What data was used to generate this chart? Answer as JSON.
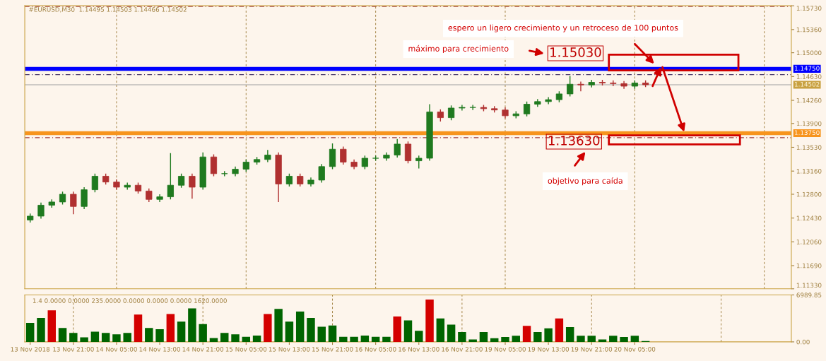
{
  "chart_data": [
    {
      "type": "candlestick",
      "categories": [
        null,
        null,
        null,
        null,
        null,
        null,
        null,
        null,
        null,
        null,
        null,
        null,
        null,
        null,
        null,
        null,
        null,
        null,
        null,
        null,
        null,
        null,
        null,
        null,
        null,
        null,
        null,
        null,
        null,
        null,
        null,
        null,
        null,
        null,
        null,
        null,
        null,
        null,
        null,
        null,
        null,
        null,
        null,
        null,
        null,
        null,
        null,
        null,
        null,
        null,
        null,
        null,
        null,
        null,
        null,
        null,
        null,
        null,
        null,
        null,
        null,
        null,
        null,
        null,
        null,
        null,
        null,
        null,
        null,
        null,
        null
      ],
      "ohlc": [
        [
          1.124,
          1.125,
          1.1236,
          1.1246
        ],
        [
          1.1246,
          1.1267,
          1.1242,
          1.1263
        ],
        [
          1.1263,
          1.1272,
          1.1259,
          1.1268
        ],
        [
          1.1268,
          1.1284,
          1.1264,
          1.128
        ],
        [
          1.128,
          1.1284,
          1.1249,
          1.1261
        ],
        [
          1.1261,
          1.1291,
          1.1257,
          1.1287
        ],
        [
          1.1287,
          1.1312,
          1.1283,
          1.1308
        ],
        [
          1.1308,
          1.1312,
          1.1295,
          1.1299
        ],
        [
          1.1299,
          1.1303,
          1.1287,
          1.1291
        ],
        [
          1.1291,
          1.1298,
          1.1287,
          1.1294
        ],
        [
          1.1294,
          1.1298,
          1.1281,
          1.1285
        ],
        [
          1.1285,
          1.1289,
          1.1268,
          1.1272
        ],
        [
          1.1272,
          1.128,
          1.1268,
          1.1276
        ],
        [
          1.1276,
          1.1344,
          1.1272,
          1.1294
        ],
        [
          1.1294,
          1.1312,
          1.129,
          1.1308
        ],
        [
          1.1308,
          1.1312,
          1.1273,
          1.1291
        ],
        [
          1.1291,
          1.1345,
          1.1287,
          1.1338
        ],
        [
          1.1338,
          1.1342,
          1.1308,
          1.1312
        ],
        [
          1.1312,
          1.1316,
          1.1308,
          1.1312
        ],
        [
          1.1312,
          1.1323,
          1.1308,
          1.1319
        ],
        [
          1.1319,
          1.1334,
          1.1315,
          1.133
        ],
        [
          1.133,
          1.1338,
          1.1326,
          1.1334
        ],
        [
          1.1334,
          1.1349,
          1.133,
          1.1341
        ],
        [
          1.1341,
          1.1345,
          1.1268,
          1.1296
        ],
        [
          1.1296,
          1.1312,
          1.1292,
          1.1308
        ],
        [
          1.1308,
          1.1312,
          1.1292,
          1.1296
        ],
        [
          1.1296,
          1.1306,
          1.1292,
          1.1302
        ],
        [
          1.1302,
          1.1327,
          1.1298,
          1.1323
        ],
        [
          1.1323,
          1.1359,
          1.1319,
          1.135
        ],
        [
          1.135,
          1.1354,
          1.1326,
          1.133
        ],
        [
          1.133,
          1.1334,
          1.1319,
          1.1323
        ],
        [
          1.1323,
          1.134,
          1.1319,
          1.1336
        ],
        [
          1.1336,
          1.134,
          1.1332,
          1.1336
        ],
        [
          1.1336,
          1.1345,
          1.1332,
          1.1341
        ],
        [
          1.1341,
          1.1366,
          1.1337,
          1.1358
        ],
        [
          1.1358,
          1.1362,
          1.1328,
          1.1332
        ],
        [
          1.1332,
          1.134,
          1.132,
          1.1336
        ],
        [
          1.1336,
          1.142,
          1.1332,
          1.1408
        ],
        [
          1.1408,
          1.1412,
          1.1393,
          1.1399
        ],
        [
          1.1399,
          1.1418,
          1.1395,
          1.1414
        ],
        [
          1.1414,
          1.1419,
          1.141,
          1.1415
        ],
        [
          1.1415,
          1.1419,
          1.1411,
          1.1415
        ],
        [
          1.1415,
          1.1419,
          1.1409,
          1.1413
        ],
        [
          1.1413,
          1.1417,
          1.1407,
          1.1411
        ],
        [
          1.1411,
          1.1415,
          1.1398,
          1.1402
        ],
        [
          1.1402,
          1.1409,
          1.1398,
          1.1405
        ],
        [
          1.1405,
          1.1424,
          1.1401,
          1.142
        ],
        [
          1.142,
          1.1428,
          1.1416,
          1.1424
        ],
        [
          1.1424,
          1.1431,
          1.142,
          1.1427
        ],
        [
          1.1427,
          1.144,
          1.1423,
          1.1436
        ],
        [
          1.1436,
          1.1464,
          1.1432,
          1.1451
        ],
        [
          1.1451,
          1.1455,
          1.144,
          1.145
        ],
        [
          1.145,
          1.1458,
          1.1446,
          1.1454
        ],
        [
          1.1454,
          1.1458,
          1.1449,
          1.1453
        ],
        [
          1.1453,
          1.1457,
          1.1448,
          1.1452
        ],
        [
          1.1452,
          1.1456,
          1.1444,
          1.1448
        ],
        [
          1.1448,
          1.1457,
          1.1444,
          1.1453
        ],
        [
          1.1453,
          1.1457,
          1.14466,
          1.14502
        ],
        null,
        null,
        null,
        null,
        null,
        null,
        null,
        null,
        null,
        null,
        null,
        null,
        null
      ],
      "ylim": [
        1.1133,
        1.1573
      ],
      "yticks": [
        {
          "value": 1.1133,
          "label": "1.11330"
        },
        {
          "value": 1.1169,
          "label": "1.11690"
        },
        {
          "value": 1.1206,
          "label": "1.12060"
        },
        {
          "value": 1.1243,
          "label": "1.12430"
        },
        {
          "value": 1.128,
          "label": "1.12800"
        },
        {
          "value": 1.1316,
          "label": "1.13160"
        },
        {
          "value": 1.1353,
          "label": "1.13530"
        },
        {
          "value": 1.139,
          "label": "1.13900"
        },
        {
          "value": 1.1426,
          "label": "1.14260"
        },
        {
          "value": 1.1463,
          "label": "1.14630"
        },
        {
          "value": 1.15,
          "label": "1.15000"
        },
        {
          "value": 1.1536,
          "label": "1.15360"
        },
        {
          "value": 1.1573,
          "label": "1.15730"
        }
      ],
      "ref_lines": [
        {
          "axis": "y",
          "value": 1.1475,
          "label": "1.14750",
          "color": "#0000ff"
        },
        {
          "axis": "y",
          "value": 1.1375,
          "label": "1.13750",
          "color": "#f7941d"
        },
        {
          "axis": "y",
          "value": 1.14502,
          "label": "1.14502",
          "color": "#a0a0a0"
        },
        {
          "axis": "y",
          "value": 1.1572,
          "color": "#a03a3a",
          "line_style": "dashed"
        },
        {
          "axis": "y",
          "value": 1.1466,
          "color": "#4a3a6a",
          "line_style": "dashed"
        },
        {
          "axis": "y",
          "value": 1.1368,
          "color": "#a03a3a",
          "line_style": "dashed"
        }
      ],
      "annotations": [
        "espero un ligero crecimiento y un retroceso de 100 puntos",
        "máximo para crecimiento",
        "1.15030",
        "1.13630",
        "objetivo para caída",
        "#EURUSD,M30  1.14495 1.14503 1.14466 1.14502"
      ],
      "grid": "x"
    },
    {
      "type": "bar",
      "categories": [
        "13 Nov 2018",
        null,
        null,
        null,
        "13 Nov 21:00",
        null,
        null,
        null,
        "14 Nov 05:00",
        null,
        null,
        null,
        "14 Nov 13:00",
        null,
        null,
        null,
        "14 Nov 21:00",
        null,
        null,
        null,
        "15 Nov 05:00",
        null,
        null,
        null,
        "15 Nov 13:00",
        null,
        null,
        null,
        "15 Nov 21:00",
        null,
        null,
        null,
        "16 Nov 05:00",
        null,
        null,
        null,
        "16 Nov 13:00",
        null,
        null,
        null,
        "16 Nov 21:00",
        null,
        null,
        null,
        "19 Nov 05:00",
        null,
        null,
        null,
        "19 Nov 13:00",
        null,
        null,
        null,
        "19 Nov 21:00",
        null,
        null,
        null,
        "20 Nov 05:00",
        null,
        null,
        null,
        null,
        null,
        null,
        null,
        null,
        null,
        null,
        null,
        null,
        null,
        null
      ],
      "values": [
        2830,
        3580,
        4710,
        2070,
        1320,
        680,
        1510,
        1320,
        1130,
        1320,
        4070,
        2070,
        1880,
        4150,
        3010,
        5000,
        2640,
        570,
        1320,
        1130,
        750,
        940,
        4150,
        4900,
        3010,
        4520,
        3580,
        2260,
        2450,
        750,
        750,
        940,
        750,
        750,
        3770,
        3200,
        1650,
        6300,
        3490,
        2570,
        1470,
        370,
        1470,
        550,
        730,
        920,
        2390,
        1470,
        2020,
        3490,
        2200,
        920,
        920,
        370,
        920,
        730,
        920,
        110,
        null,
        null,
        null,
        null,
        null,
        null,
        null,
        null,
        null,
        null,
        null,
        null,
        null
      ],
      "colors": [
        "#006400",
        "#006400",
        "#d40000",
        "#006400",
        "#006400",
        "#006400",
        "#006400",
        "#006400",
        "#006400",
        "#006400",
        "#d40000",
        "#006400",
        "#006400",
        "#d40000",
        "#006400",
        "#006400",
        "#006400",
        "#006400",
        "#006400",
        "#006400",
        "#006400",
        "#006400",
        "#d40000",
        "#006400",
        "#006400",
        "#006400",
        "#006400",
        "#006400",
        "#006400",
        "#006400",
        "#006400",
        "#006400",
        "#006400",
        "#006400",
        "#d40000",
        "#006400",
        "#006400",
        "#d40000",
        "#006400",
        "#006400",
        "#006400",
        "#006400",
        "#006400",
        "#006400",
        "#006400",
        "#006400",
        "#d40000",
        "#006400",
        "#006400",
        "#d40000",
        "#006400",
        "#006400",
        "#006400",
        "#006400",
        "#006400",
        "#006400",
        "#006400",
        "#006400",
        null,
        null,
        null,
        null,
        null,
        null,
        null,
        null,
        null,
        null,
        null,
        null,
        null
      ],
      "ylim": [
        0,
        6989.85
      ],
      "yticks": [
        {
          "value": 0,
          "label": "0.00"
        },
        6989.85
      ],
      "annotations": [
        "1.4 0.0000 0.0000 235.0000 0.0000 0.0000 0.0000 1620.0000"
      ],
      "grid": "x"
    }
  ]
}
